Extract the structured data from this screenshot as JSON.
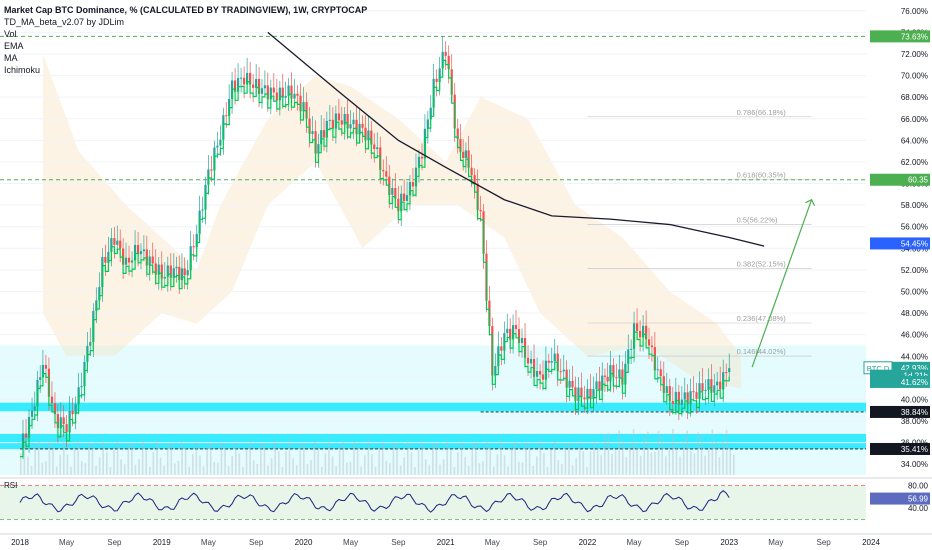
{
  "legend": {
    "title": "Market Cap BTC Dominance, % (CALCULATED BY TRADINGVIEW), 1W, CRYPTOCAP",
    "indicators": [
      "TD_MA_beta_v2.07 by JDLim",
      "Vol",
      "EMA",
      "MA",
      "Ichimoku"
    ]
  },
  "colors": {
    "background": "#ffffff",
    "up": "#26a69a",
    "down": "#ef5350",
    "td_line": "#00c853",
    "ma_line": "#1a1a2e",
    "cloud": "#f5deb3",
    "zone": "#00e5ff",
    "green_level": "#4caf50",
    "fib": "#9e9e9e",
    "rsi_bg": "#e8f5e9",
    "rsi_line": "#1a237e"
  },
  "chart_data": {
    "type": "candlestick",
    "symbol": "BTC.D",
    "interval": "1W",
    "x_ticks": [
      "2018",
      "May",
      "Sep",
      "2019",
      "May",
      "Sep",
      "2020",
      "May",
      "Sep",
      "2021",
      "May",
      "Sep",
      "2022",
      "May",
      "Sep",
      "2023",
      "May",
      "Sep",
      "2024"
    ],
    "y_ticks": [
      "76.00%",
      "74.00%",
      "72.00%",
      "70.00%",
      "68.00%",
      "66.00%",
      "64.00%",
      "62.00%",
      "60.00%",
      "58.00%",
      "56.00%",
      "54.00%",
      "52.00%",
      "50.00%",
      "48.00%",
      "46.00%",
      "44.00%",
      "42.00%",
      "40.00%",
      "38.00%",
      "36.00%",
      "34.00%"
    ],
    "ylim": [
      33.0,
      77.0
    ],
    "close_series": [
      [
        "2018-01-01",
        35.5
      ],
      [
        "2018-02-01",
        38.8
      ],
      [
        "2018-03-01",
        43.5
      ],
      [
        "2018-04-01",
        38.2
      ],
      [
        "2018-05-01",
        37.5
      ],
      [
        "2018-06-01",
        40.5
      ],
      [
        "2018-07-01",
        46.0
      ],
      [
        "2018-08-01",
        52.5
      ],
      [
        "2018-09-01",
        55.0
      ],
      [
        "2018-10-01",
        52.5
      ],
      [
        "2018-11-01",
        54.0
      ],
      [
        "2018-12-01",
        52.8
      ],
      [
        "2019-01-01",
        51.5
      ],
      [
        "2019-02-01",
        52.0
      ],
      [
        "2019-03-01",
        51.5
      ],
      [
        "2019-04-01",
        55.5
      ],
      [
        "2019-05-01",
        61.0
      ],
      [
        "2019-06-01",
        64.5
      ],
      [
        "2019-07-01",
        69.0
      ],
      [
        "2019-08-01",
        69.8
      ],
      [
        "2019-09-01",
        69.0
      ],
      [
        "2019-10-01",
        68.5
      ],
      [
        "2019-11-01",
        68.2
      ],
      [
        "2019-12-01",
        68.5
      ],
      [
        "2020-01-01",
        67.0
      ],
      [
        "2020-02-01",
        63.2
      ],
      [
        "2020-03-01",
        65.5
      ],
      [
        "2020-04-01",
        66.0
      ],
      [
        "2020-05-01",
        65.5
      ],
      [
        "2020-06-01",
        65.0
      ],
      [
        "2020-07-01",
        63.5
      ],
      [
        "2020-08-01",
        60.2
      ],
      [
        "2020-09-01",
        58.0
      ],
      [
        "2020-10-01",
        59.5
      ],
      [
        "2020-11-01",
        63.0
      ],
      [
        "2020-12-01",
        69.0
      ],
      [
        "2021-01-01",
        72.5
      ],
      [
        "2021-02-01",
        63.5
      ],
      [
        "2021-03-01",
        62.0
      ],
      [
        "2021-04-01",
        57.0
      ],
      [
        "2021-05-01",
        42.5
      ],
      [
        "2021-06-01",
        46.0
      ],
      [
        "2021-07-01",
        46.5
      ],
      [
        "2021-08-01",
        43.5
      ],
      [
        "2021-09-01",
        42.0
      ],
      [
        "2021-10-01",
        44.0
      ],
      [
        "2021-11-01",
        42.2
      ],
      [
        "2021-12-01",
        40.5
      ],
      [
        "2022-01-01",
        40.3
      ],
      [
        "2022-02-01",
        41.5
      ],
      [
        "2022-03-01",
        42.5
      ],
      [
        "2022-04-01",
        42.0
      ],
      [
        "2022-05-01",
        46.5
      ],
      [
        "2022-06-01",
        46.0
      ],
      [
        "2022-07-01",
        42.5
      ],
      [
        "2022-08-01",
        40.0
      ],
      [
        "2022-09-01",
        40.0
      ],
      [
        "2022-10-01",
        40.5
      ],
      [
        "2022-11-01",
        41.2
      ],
      [
        "2022-12-01",
        41.2
      ],
      [
        "2023-01-01",
        42.9
      ]
    ],
    "moving_average": [
      [
        "2019-10-01",
        74.0
      ],
      [
        "2020-04-01",
        68.5
      ],
      [
        "2020-09-01",
        64.0
      ],
      [
        "2021-01-01",
        61.5
      ],
      [
        "2021-06-01",
        58.5
      ],
      [
        "2021-10-01",
        57.0
      ],
      [
        "2022-03-01",
        56.7
      ],
      [
        "2022-08-01",
        56.2
      ],
      [
        "2023-01-01",
        55.0
      ],
      [
        "2023-04-01",
        54.2
      ]
    ],
    "price_labels": [
      {
        "text": "73.63%",
        "value": 73.63,
        "role": "horizontal level"
      },
      {
        "text": "60.35",
        "value": 60.35,
        "role": "horizontal level"
      },
      {
        "text": "54.45%",
        "value": 54.45,
        "role": "moving average"
      },
      {
        "text": "42.93%",
        "value": 42.93,
        "role": "last price",
        "symbol": "BTC.D"
      },
      {
        "text": "1d 21h",
        "value": 42.2,
        "role": "countdown"
      },
      {
        "text": "41.62%",
        "value": 41.62,
        "role": "level"
      },
      {
        "text": "38.84%",
        "value": 38.84,
        "role": "support"
      },
      {
        "text": "35.41%",
        "value": 35.41,
        "role": "support"
      }
    ],
    "fib_levels": [
      {
        "label": "0.786(66.18%)",
        "value": 66.18
      },
      {
        "label": "0.618(60.35%)",
        "value": 60.35
      },
      {
        "label": "0.5(56.22%)",
        "value": 56.22
      },
      {
        "label": "0.382(52.15%)",
        "value": 52.15
      },
      {
        "label": "0.236(47.08%)",
        "value": 47.08
      },
      {
        "label": "0.146(44.02%)",
        "value": 44.02
      }
    ],
    "annotations": [
      {
        "type": "arrow",
        "from": [
          "2023-03-01",
          43.0
        ],
        "to": [
          "2023-08-01",
          58.5
        ]
      }
    ],
    "rsi": {
      "label": "RSI",
      "current_label": "56.99",
      "current": 56.99,
      "ticks": [
        "80.00",
        "40.00"
      ],
      "ylim": [
        10,
        90
      ]
    }
  }
}
